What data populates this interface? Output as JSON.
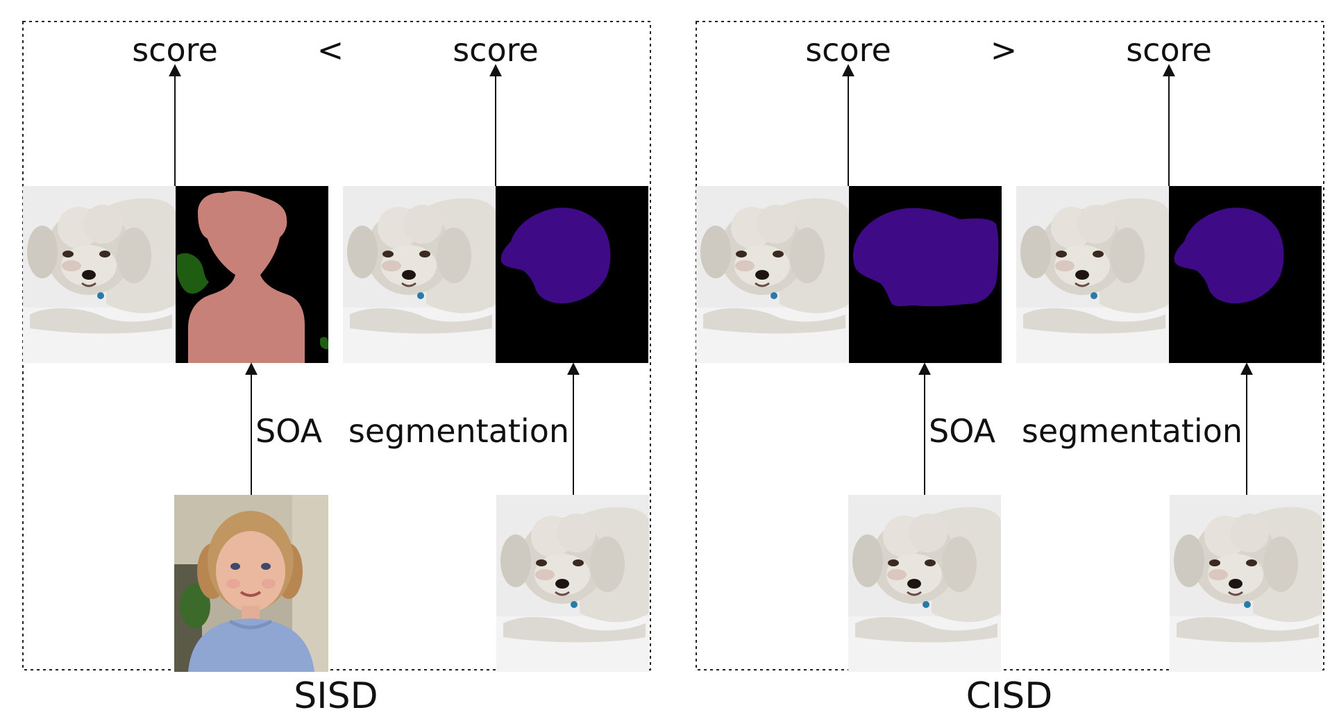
{
  "panels": [
    {
      "caption": "SISD",
      "comparator": "<",
      "left_score": "score",
      "right_score": "score",
      "left_method": "SOA",
      "right_method": "segmentation",
      "left_input_subject": "girl",
      "left_mask_style": "person-mask",
      "right_mask_style": "dog-head-mask"
    },
    {
      "caption": "CISD",
      "comparator": ">",
      "left_score": "score",
      "right_score": "score",
      "left_method": "SOA",
      "right_method": "segmentation",
      "left_input_subject": "dog",
      "left_mask_style": "dog-body-mask",
      "right_mask_style": "dog-head-mask"
    }
  ],
  "colors": {
    "border": "#222222",
    "arrow": "#111111",
    "mask_background": "#000000",
    "person_mask": "#c88178",
    "plant_mask": "#1f5e12",
    "dog_mask": "#3f0a86",
    "snow": "#e9e9ea",
    "fur": "#d9d6cf"
  }
}
